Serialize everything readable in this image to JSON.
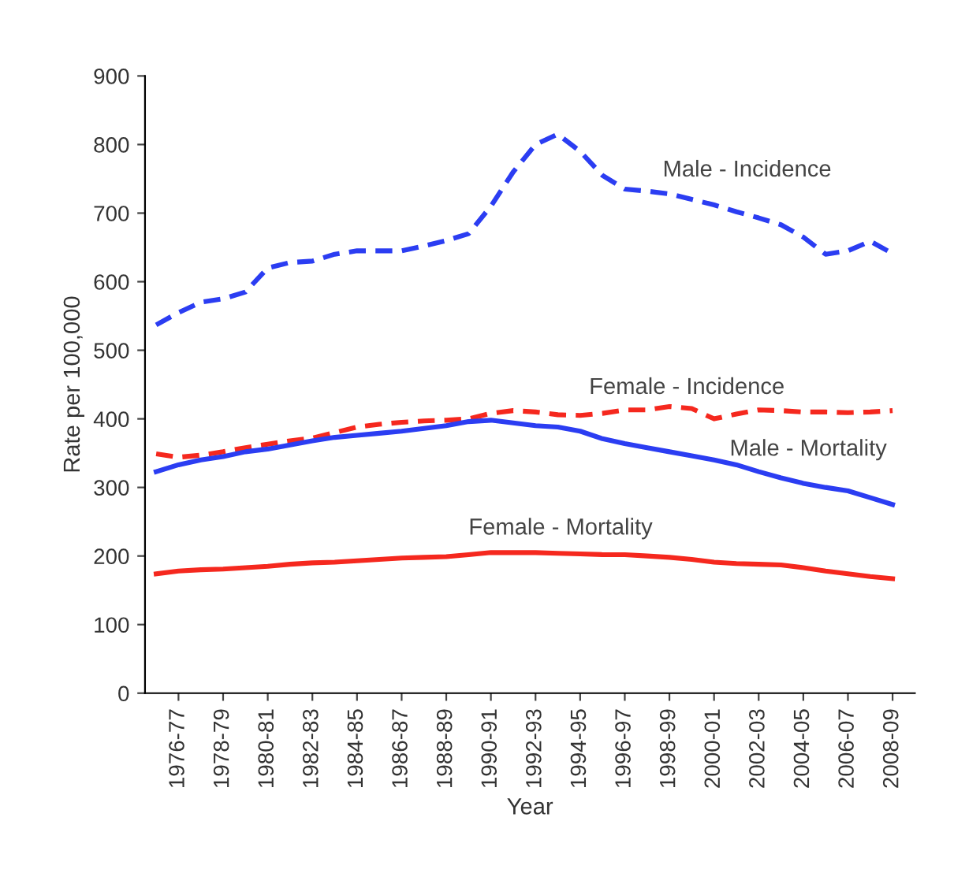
{
  "chart_data": {
    "type": "line",
    "xlabel": "Year",
    "ylabel": "Rate per 100,000",
    "categories": [
      null,
      "1976-77",
      null,
      "1978-79",
      null,
      "1980-81",
      null,
      "1982-83",
      null,
      "1984-85",
      null,
      "1986-87",
      null,
      "1988-89",
      null,
      "1990-91",
      null,
      "1992-93",
      null,
      "1994-95",
      null,
      "1996-97",
      null,
      "1998-99",
      null,
      "2000-01",
      null,
      "2002-03",
      null,
      "2004-05",
      null,
      "2006-07",
      null,
      "2008-09"
    ],
    "ylim": [
      0,
      900
    ],
    "yticks": [
      0,
      100,
      200,
      300,
      400,
      500,
      600,
      700,
      800,
      900
    ],
    "grid": false,
    "legend": false,
    "marker": "none",
    "series": [
      {
        "name": "Male - Incidence",
        "color": "#2b3df2",
        "line_style": "dashed",
        "values": [
          537,
          555,
          570,
          575,
          585,
          620,
          628,
          630,
          640,
          645,
          645,
          645,
          652,
          660,
          670,
          710,
          760,
          800,
          815,
          790,
          755,
          735,
          732,
          728,
          720,
          712,
          702,
          693,
          683,
          665,
          640,
          645,
          659,
          641
        ]
      },
      {
        "name": "Female - Incidence",
        "color": "#f5281e",
        "line_style": "dashed",
        "values": [
          349,
          344,
          347,
          352,
          358,
          363,
          368,
          372,
          380,
          388,
          392,
          395,
          397,
          398,
          400,
          408,
          412,
          410,
          406,
          405,
          408,
          413,
          413,
          418,
          415,
          400,
          407,
          413,
          412,
          410,
          410,
          409,
          410,
          412
        ]
      },
      {
        "name": "Male - Mortality",
        "color": "#2b3df2",
        "line_style": "solid",
        "values": [
          323,
          333,
          340,
          345,
          352,
          356,
          362,
          368,
          373,
          376,
          379,
          382,
          386,
          390,
          396,
          398,
          394,
          390,
          388,
          382,
          371,
          364,
          358,
          352,
          346,
          340,
          333,
          323,
          314,
          306,
          300,
          295,
          285,
          275
        ]
      },
      {
        "name": "Female - Mortality",
        "color": "#f5281e",
        "line_style": "solid",
        "values": [
          174,
          178,
          180,
          181,
          183,
          185,
          188,
          190,
          191,
          193,
          195,
          197,
          198,
          199,
          202,
          205,
          205,
          205,
          204,
          203,
          202,
          202,
          200,
          198,
          195,
          191,
          189,
          188,
          187,
          183,
          178,
          174,
          170,
          167
        ]
      }
    ]
  }
}
